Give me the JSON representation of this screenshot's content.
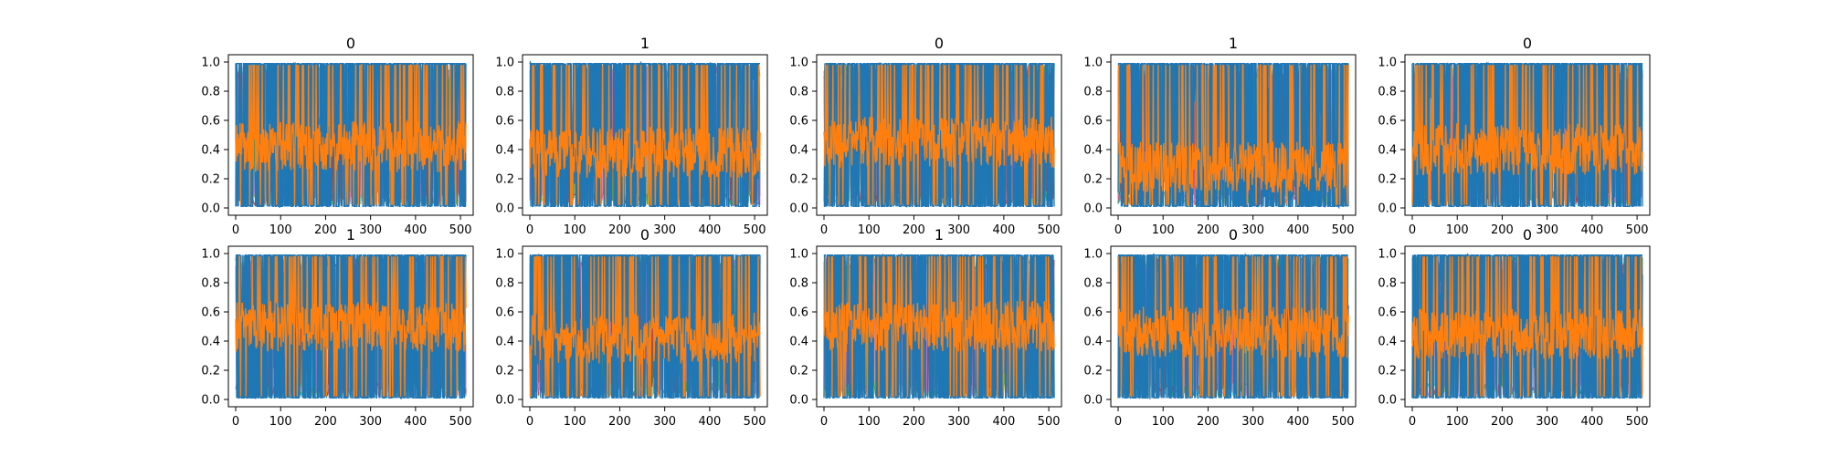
{
  "figure": {
    "background": "#ffffff",
    "colors": {
      "blue": "#1f77b4",
      "orange": "#ff7f0e",
      "cyan": "#17becf",
      "olive": "#bcbd22",
      "green": "#2ca02c",
      "red": "#d62728",
      "pink": "#e377c2",
      "gray": "#7f7f7f"
    }
  },
  "chart_data": [
    {
      "type": "line",
      "title": "0",
      "xlim": [
        0,
        512
      ],
      "ylim": [
        0.0,
        1.0
      ],
      "xticks": [
        0,
        100,
        200,
        300,
        400,
        500
      ],
      "xtick_labels": [
        "0",
        "100",
        "200",
        "300",
        "400",
        "500"
      ],
      "yticks": [
        0.0,
        0.2,
        0.4,
        0.6,
        0.8,
        1.0
      ],
      "ytick_labels": [
        "0.0",
        "0.2",
        "0.4",
        "0.6",
        "0.8",
        "1.0"
      ],
      "series_note": "many overlapping series dominated by blue and orange",
      "orange_mean": 0.42,
      "seed": 11
    },
    {
      "type": "line",
      "title": "1",
      "xlim": [
        0,
        512
      ],
      "ylim": [
        0.0,
        1.0
      ],
      "xticks": [
        0,
        100,
        200,
        300,
        400,
        500
      ],
      "xtick_labels": [
        "0",
        "100",
        "200",
        "300",
        "400",
        "500"
      ],
      "yticks": [
        0.0,
        0.2,
        0.4,
        0.6,
        0.8,
        1.0
      ],
      "ytick_labels": [
        "0.0",
        "0.2",
        "0.4",
        "0.6",
        "0.8",
        "1.0"
      ],
      "orange_mean": 0.38,
      "seed": 23
    },
    {
      "type": "line",
      "title": "0",
      "xlim": [
        0,
        512
      ],
      "ylim": [
        0.0,
        1.0
      ],
      "xticks": [
        0,
        100,
        200,
        300,
        400,
        500
      ],
      "xtick_labels": [
        "0",
        "100",
        "200",
        "300",
        "400",
        "500"
      ],
      "yticks": [
        0.0,
        0.2,
        0.4,
        0.6,
        0.8,
        1.0
      ],
      "ytick_labels": [
        "0.0",
        "0.2",
        "0.4",
        "0.6",
        "0.8",
        "1.0"
      ],
      "orange_mean": 0.45,
      "seed": 37
    },
    {
      "type": "line",
      "title": "1",
      "xlim": [
        0,
        512
      ],
      "ylim": [
        0.0,
        1.0
      ],
      "xticks": [
        0,
        100,
        200,
        300,
        400,
        500
      ],
      "xtick_labels": [
        "0",
        "100",
        "200",
        "300",
        "400",
        "500"
      ],
      "yticks": [
        0.0,
        0.2,
        0.4,
        0.6,
        0.8,
        1.0
      ],
      "ytick_labels": [
        "0.0",
        "0.2",
        "0.4",
        "0.6",
        "0.8",
        "1.0"
      ],
      "orange_mean": 0.28,
      "seed": 41
    },
    {
      "type": "line",
      "title": "0",
      "xlim": [
        0,
        512
      ],
      "ylim": [
        0.0,
        1.0
      ],
      "xticks": [
        0,
        100,
        200,
        300,
        400,
        500
      ],
      "xtick_labels": [
        "0",
        "100",
        "200",
        "300",
        "400",
        "500"
      ],
      "yticks": [
        0.0,
        0.2,
        0.4,
        0.6,
        0.8,
        1.0
      ],
      "ytick_labels": [
        "0.0",
        "0.2",
        "0.4",
        "0.6",
        "0.8",
        "1.0"
      ],
      "orange_mean": 0.4,
      "seed": 53
    },
    {
      "type": "line",
      "title": "1",
      "xlim": [
        0,
        512
      ],
      "ylim": [
        0.0,
        1.0
      ],
      "xticks": [
        0,
        100,
        200,
        300,
        400,
        500
      ],
      "xtick_labels": [
        "0",
        "100",
        "200",
        "300",
        "400",
        "500"
      ],
      "yticks": [
        0.0,
        0.2,
        0.4,
        0.6,
        0.8,
        1.0
      ],
      "ytick_labels": [
        "0.0",
        "0.2",
        "0.4",
        "0.6",
        "0.8",
        "1.0"
      ],
      "orange_mean": 0.5,
      "seed": 61
    },
    {
      "type": "line",
      "title": "0",
      "xlim": [
        0,
        512
      ],
      "ylim": [
        0.0,
        1.0
      ],
      "xticks": [
        0,
        100,
        200,
        300,
        400,
        500
      ],
      "xtick_labels": [
        "0",
        "100",
        "200",
        "300",
        "400",
        "500"
      ],
      "yticks": [
        0.0,
        0.2,
        0.4,
        0.6,
        0.8,
        1.0
      ],
      "ytick_labels": [
        "0.0",
        "0.2",
        "0.4",
        "0.6",
        "0.8",
        "1.0"
      ],
      "orange_mean": 0.42,
      "seed": 73
    },
    {
      "type": "line",
      "title": "1",
      "xlim": [
        0,
        512
      ],
      "ylim": [
        0.0,
        1.0
      ],
      "xticks": [
        0,
        100,
        200,
        300,
        400,
        500
      ],
      "xtick_labels": [
        "0",
        "100",
        "200",
        "300",
        "400",
        "500"
      ],
      "yticks": [
        0.0,
        0.2,
        0.4,
        0.6,
        0.8,
        1.0
      ],
      "ytick_labels": [
        "0.0",
        "0.2",
        "0.4",
        "0.6",
        "0.8",
        "1.0"
      ],
      "orange_mean": 0.5,
      "seed": 89
    },
    {
      "type": "line",
      "title": "0",
      "xlim": [
        0,
        512
      ],
      "ylim": [
        0.0,
        1.0
      ],
      "xticks": [
        0,
        100,
        200,
        300,
        400,
        500
      ],
      "xtick_labels": [
        "0",
        "100",
        "200",
        "300",
        "400",
        "500"
      ],
      "yticks": [
        0.0,
        0.2,
        0.4,
        0.6,
        0.8,
        1.0
      ],
      "ytick_labels": [
        "0.0",
        "0.2",
        "0.4",
        "0.6",
        "0.8",
        "1.0"
      ],
      "orange_mean": 0.46,
      "seed": 97
    },
    {
      "type": "line",
      "title": "0",
      "xlim": [
        0,
        512
      ],
      "ylim": [
        0.0,
        1.0
      ],
      "xticks": [
        0,
        100,
        200,
        300,
        400,
        500
      ],
      "xtick_labels": [
        "0",
        "100",
        "200",
        "300",
        "400",
        "500"
      ],
      "yticks": [
        0.0,
        0.2,
        0.4,
        0.6,
        0.8,
        1.0
      ],
      "ytick_labels": [
        "0.0",
        "0.2",
        "0.4",
        "0.6",
        "0.8",
        "1.0"
      ],
      "orange_mean": 0.45,
      "seed": 103
    }
  ]
}
